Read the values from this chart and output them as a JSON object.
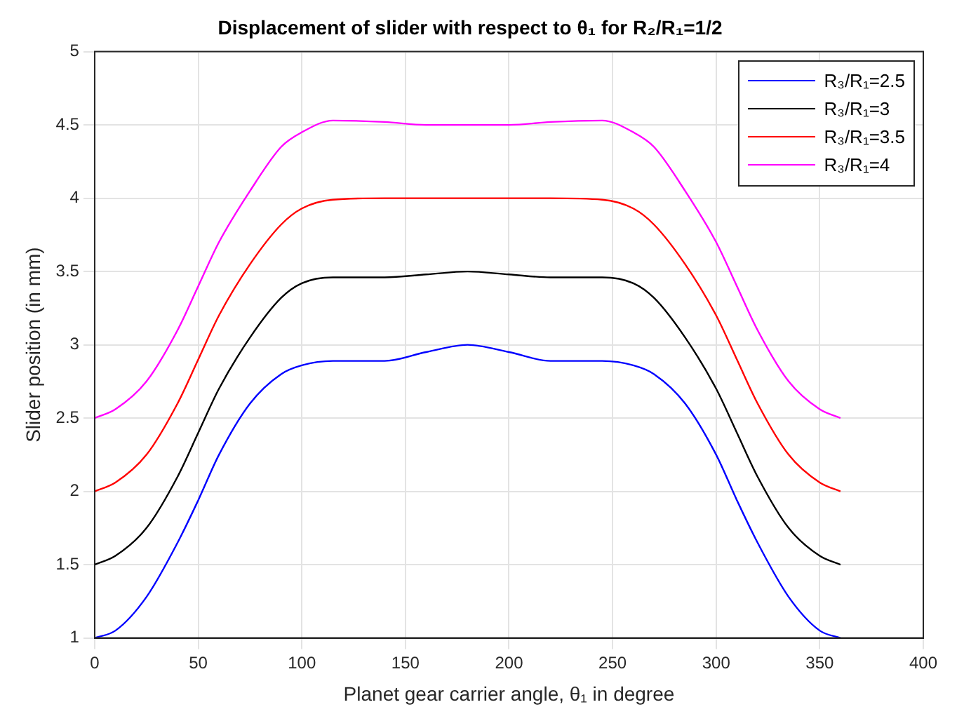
{
  "chart_data": {
    "type": "line",
    "title": "Displacement of slider with respect to θ₁ for R₂/R₁=1/2",
    "xlabel": "Planet gear carrier angle, θ₁ in degree",
    "ylabel": "Slider position (in mm)",
    "x": [
      0,
      10,
      25,
      40,
      50,
      60,
      75,
      90,
      100,
      115,
      140,
      160,
      180,
      200,
      220,
      245,
      260,
      270,
      285,
      300,
      310,
      320,
      335,
      350,
      360
    ],
    "series": [
      {
        "name": "R₃/R₁=2.5",
        "color": "#0000ff",
        "values": [
          1,
          1.05,
          1.28,
          1.65,
          1.94,
          2.25,
          2.6,
          2.8,
          2.86,
          2.89,
          2.89,
          2.95,
          3.0,
          2.95,
          2.89,
          2.89,
          2.86,
          2.8,
          2.6,
          2.25,
          1.94,
          1.65,
          1.28,
          1.05,
          1
        ]
      },
      {
        "name": "R₃/R₁=3",
        "color": "#000000",
        "values": [
          1.5,
          1.56,
          1.75,
          2.1,
          2.4,
          2.7,
          3.05,
          3.32,
          3.42,
          3.46,
          3.46,
          3.48,
          3.5,
          3.48,
          3.46,
          3.46,
          3.42,
          3.32,
          3.05,
          2.7,
          2.4,
          2.1,
          1.75,
          1.56,
          1.5
        ]
      },
      {
        "name": "R₃/R₁=3.5",
        "color": "#ff0000",
        "values": [
          2,
          2.06,
          2.25,
          2.6,
          2.9,
          3.2,
          3.55,
          3.82,
          3.93,
          3.99,
          4,
          4,
          4,
          4,
          4,
          3.99,
          3.93,
          3.82,
          3.55,
          3.2,
          2.9,
          2.6,
          2.25,
          2.06,
          2
        ]
      },
      {
        "name": "R₃/R₁=4",
        "color": "#ff00ff",
        "values": [
          2.5,
          2.56,
          2.75,
          3.1,
          3.4,
          3.7,
          4.05,
          4.35,
          4.45,
          4.53,
          4.52,
          4.5,
          4.5,
          4.5,
          4.52,
          4.53,
          4.45,
          4.35,
          4.05,
          3.7,
          3.4,
          3.1,
          2.75,
          2.56,
          2.5
        ]
      }
    ],
    "xlim": [
      0,
      400
    ],
    "xticks": [
      0,
      50,
      100,
      150,
      200,
      250,
      300,
      350,
      400
    ],
    "ylim": [
      1,
      5
    ],
    "yticks": [
      1,
      1.5,
      2,
      2.5,
      3,
      3.5,
      4,
      4.5,
      5
    ],
    "grid": true,
    "legend": "top right",
    "marker": "none",
    "line_style": "solid"
  }
}
